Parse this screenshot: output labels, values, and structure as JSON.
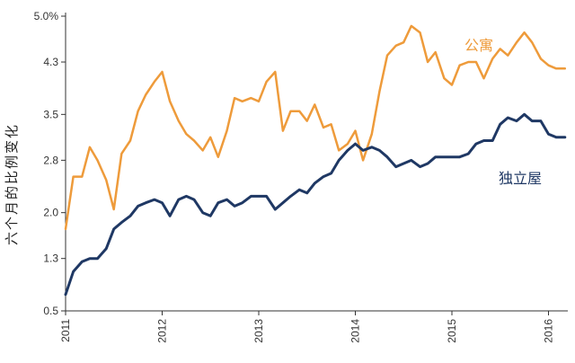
{
  "chart_data": {
    "type": "line",
    "title": "",
    "xlabel": "",
    "ylabel": "六个月的比例变化",
    "yticks": [
      "0.5",
      "1.3",
      "2.0",
      "2.8",
      "3.5",
      "4.3",
      "5.0%"
    ],
    "ylim": [
      0.5,
      5.0
    ],
    "xticks": [
      "2011",
      "2012",
      "2013",
      "2014",
      "2015",
      "2016"
    ],
    "xlim": [
      2011.0,
      2016.2
    ],
    "grid": false,
    "colors": {
      "apartment": "#EE9B3B",
      "house": "#1F3864",
      "axis": "#333333"
    },
    "series": [
      {
        "name": "公寓",
        "key": "apartment",
        "x": [
          2011.0,
          2011.08,
          2011.17,
          2011.25,
          2011.33,
          2011.42,
          2011.5,
          2011.58,
          2011.67,
          2011.75,
          2011.83,
          2011.92,
          2012.0,
          2012.08,
          2012.17,
          2012.25,
          2012.33,
          2012.42,
          2012.5,
          2012.58,
          2012.67,
          2012.75,
          2012.83,
          2012.92,
          2013.0,
          2013.08,
          2013.17,
          2013.25,
          2013.33,
          2013.42,
          2013.5,
          2013.58,
          2013.67,
          2013.75,
          2013.83,
          2013.92,
          2014.0,
          2014.08,
          2014.17,
          2014.25,
          2014.33,
          2014.42,
          2014.5,
          2014.58,
          2014.67,
          2014.75,
          2014.83,
          2014.92,
          2015.0,
          2015.08,
          2015.17,
          2015.25,
          2015.33,
          2015.42,
          2015.5,
          2015.58,
          2015.67,
          2015.75,
          2015.83,
          2015.92,
          2016.0,
          2016.08,
          2016.17
        ],
        "values": [
          1.75,
          2.55,
          2.55,
          3.0,
          2.8,
          2.5,
          2.05,
          2.9,
          3.1,
          3.55,
          3.8,
          4.0,
          4.15,
          3.7,
          3.4,
          3.2,
          3.1,
          2.95,
          3.15,
          2.85,
          3.25,
          3.75,
          3.7,
          3.75,
          3.7,
          4.0,
          4.15,
          3.25,
          3.55,
          3.55,
          3.4,
          3.65,
          3.3,
          3.35,
          2.95,
          3.05,
          3.25,
          2.8,
          3.2,
          3.85,
          4.4,
          4.55,
          4.6,
          4.85,
          4.75,
          4.3,
          4.45,
          4.05,
          3.95,
          4.25,
          4.3,
          4.3,
          4.05,
          4.35,
          4.5,
          4.4,
          4.6,
          4.75,
          4.6,
          4.35,
          4.25,
          4.2,
          4.2
        ]
      },
      {
        "name": "独立屋",
        "key": "house",
        "x": [
          2011.0,
          2011.08,
          2011.17,
          2011.25,
          2011.33,
          2011.42,
          2011.5,
          2011.58,
          2011.67,
          2011.75,
          2011.83,
          2011.92,
          2012.0,
          2012.08,
          2012.17,
          2012.25,
          2012.33,
          2012.42,
          2012.5,
          2012.58,
          2012.67,
          2012.75,
          2012.83,
          2012.92,
          2013.0,
          2013.08,
          2013.17,
          2013.25,
          2013.33,
          2013.42,
          2013.5,
          2013.58,
          2013.67,
          2013.75,
          2013.83,
          2013.92,
          2014.0,
          2014.08,
          2014.17,
          2014.25,
          2014.33,
          2014.42,
          2014.5,
          2014.58,
          2014.67,
          2014.75,
          2014.83,
          2014.92,
          2015.0,
          2015.08,
          2015.17,
          2015.25,
          2015.33,
          2015.42,
          2015.5,
          2015.58,
          2015.67,
          2015.75,
          2015.83,
          2015.92,
          2016.0,
          2016.08,
          2016.17
        ],
        "values": [
          0.75,
          1.1,
          1.25,
          1.3,
          1.3,
          1.45,
          1.75,
          1.85,
          1.95,
          2.1,
          2.15,
          2.2,
          2.15,
          1.95,
          2.2,
          2.25,
          2.2,
          2.0,
          1.95,
          2.15,
          2.2,
          2.1,
          2.15,
          2.25,
          2.25,
          2.25,
          2.05,
          2.15,
          2.25,
          2.35,
          2.3,
          2.45,
          2.55,
          2.6,
          2.8,
          2.95,
          3.05,
          2.95,
          3.0,
          2.95,
          2.85,
          2.7,
          2.75,
          2.8,
          2.7,
          2.75,
          2.85,
          2.85,
          2.85,
          2.85,
          2.9,
          3.05,
          3.1,
          3.1,
          3.35,
          3.45,
          3.4,
          3.5,
          3.4,
          3.4,
          3.2,
          3.15,
          3.15
        ]
      }
    ]
  }
}
